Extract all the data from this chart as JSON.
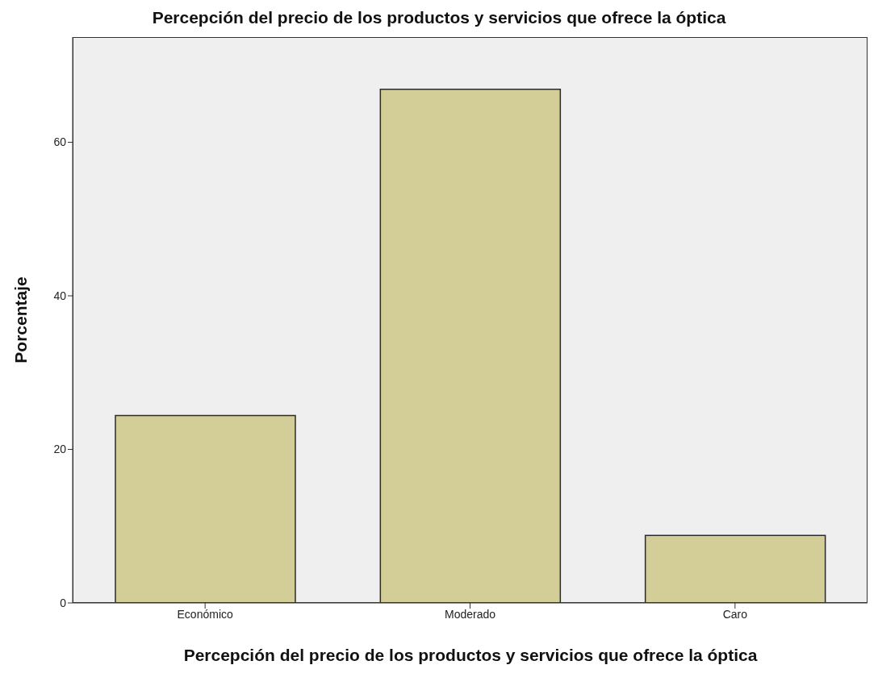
{
  "chart_data": {
    "type": "bar",
    "title": "Percepción del precio de los productos y servicios que ofrece la óptica",
    "xlabel": "Percepción del precio de los productos y servicios que ofrece la óptica",
    "ylabel": "Porcentaje",
    "categories": [
      "Económico",
      "Moderado",
      "Caro"
    ],
    "values": [
      24.4,
      66.9,
      8.8
    ],
    "color": "#d3cd97",
    "ylim": [
      0,
      73.7
    ],
    "yticks": [
      0,
      20,
      40,
      60
    ],
    "grid": false
  }
}
